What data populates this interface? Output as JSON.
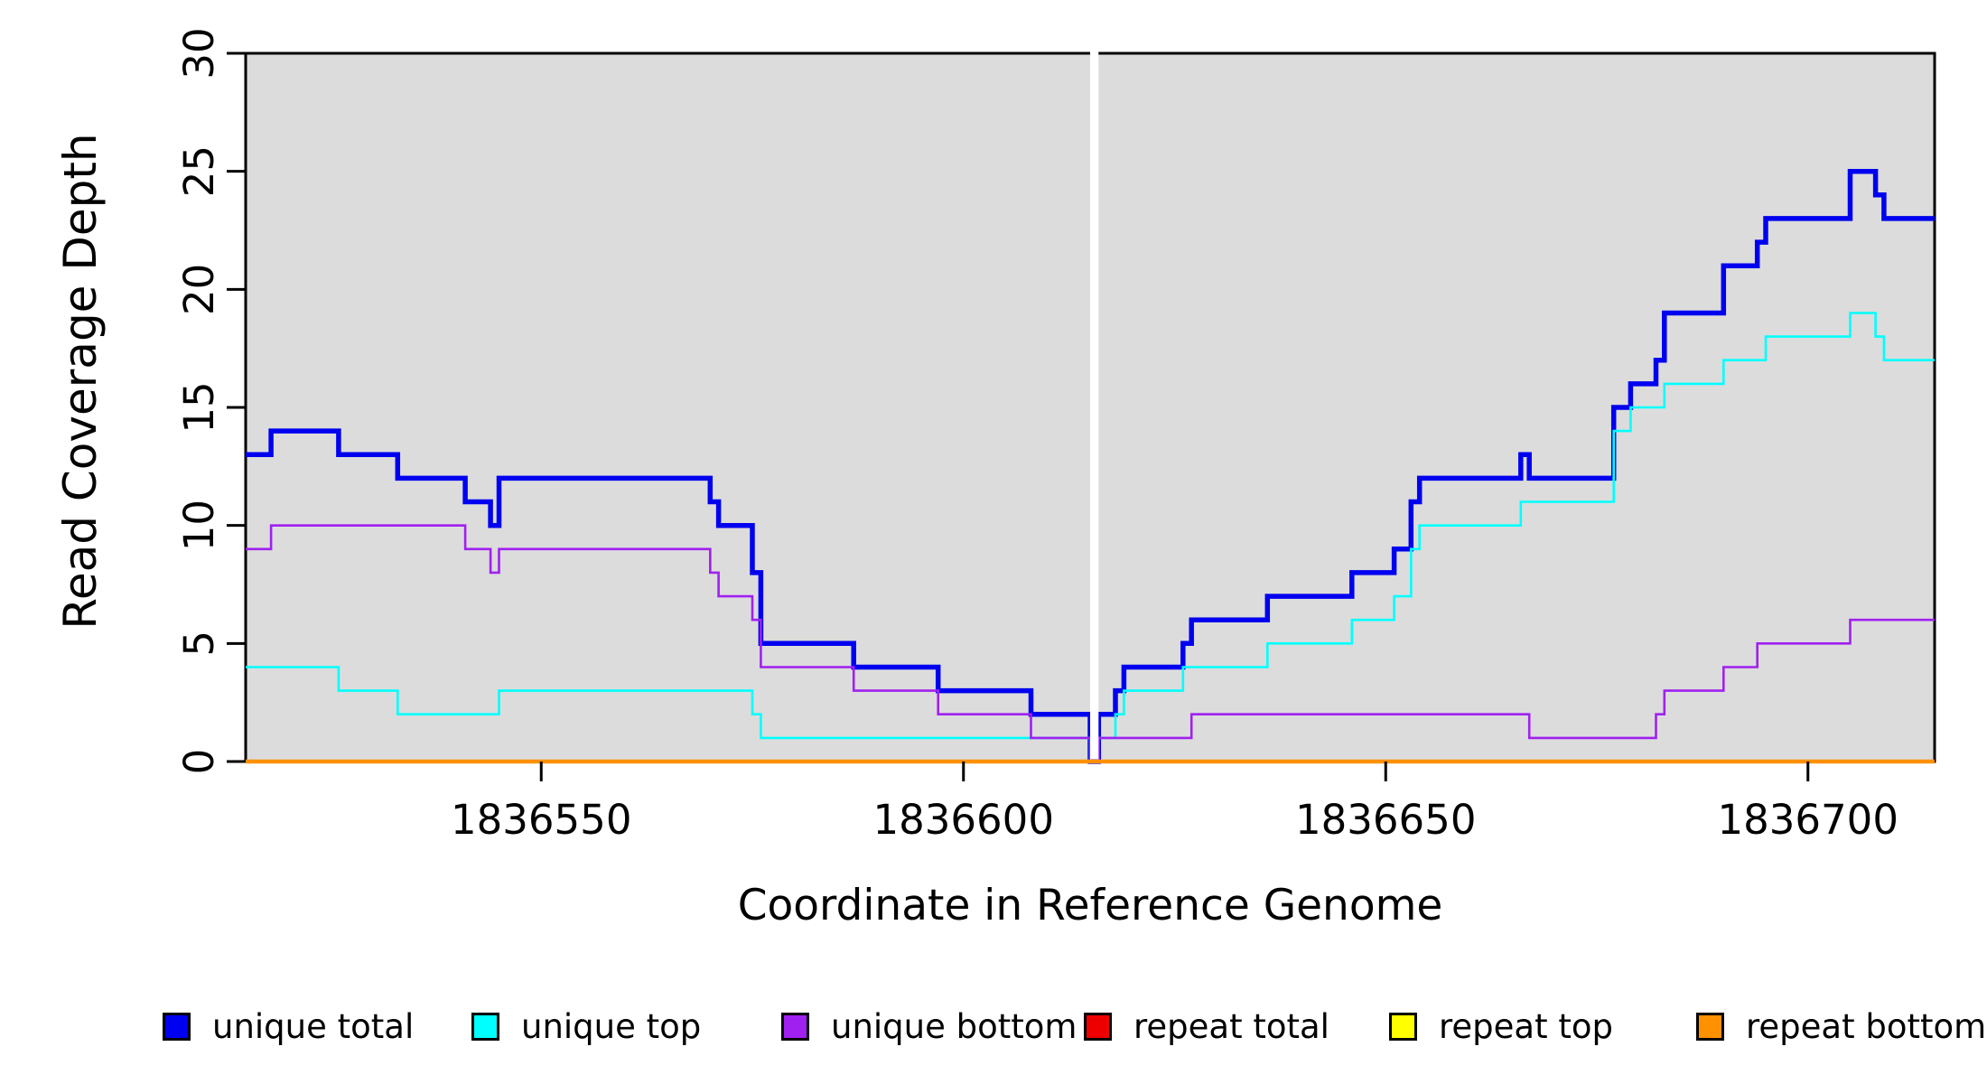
{
  "chart_data": {
    "type": "step-line",
    "title": "",
    "xlabel": "Coordinate in Reference Genome",
    "ylabel": "Read Coverage Depth",
    "xlim": [
      1836515,
      1836715
    ],
    "ylim": [
      0,
      30
    ],
    "x_ticks": [
      "1836550",
      "1836600",
      "1836650",
      "1836700"
    ],
    "x_tick_values": [
      1836550,
      1836600,
      1836650,
      1836700
    ],
    "y_ticks": [
      "0",
      "5",
      "10",
      "15",
      "20",
      "25",
      "30"
    ],
    "y_tick_values": [
      0,
      5,
      10,
      15,
      20,
      25,
      30
    ],
    "plot_background": "#dcdcdc",
    "frame_color": "#000000",
    "grid": false,
    "legend_position": "bottom",
    "gap_line_x": 1836615,
    "gap_line_color": "#ffffff",
    "series": [
      {
        "name": "unique total",
        "color": "#0000f0",
        "line_width": 5.5,
        "steps": [
          [
            1836515,
            13
          ],
          [
            1836518,
            14
          ],
          [
            1836526,
            13
          ],
          [
            1836533,
            12
          ],
          [
            1836541,
            11
          ],
          [
            1836544,
            10
          ],
          [
            1836545,
            12
          ],
          [
            1836570,
            11
          ],
          [
            1836571,
            10
          ],
          [
            1836575,
            8
          ],
          [
            1836576,
            5
          ],
          [
            1836587,
            4
          ],
          [
            1836597,
            3
          ],
          [
            1836608,
            2
          ],
          [
            1836615,
            0
          ],
          [
            1836616,
            2
          ],
          [
            1836618,
            3
          ],
          [
            1836619,
            4
          ],
          [
            1836626,
            5
          ],
          [
            1836627,
            6
          ],
          [
            1836636,
            7
          ],
          [
            1836646,
            8
          ],
          [
            1836651,
            9
          ],
          [
            1836653,
            11
          ],
          [
            1836654,
            12
          ],
          [
            1836666,
            13
          ],
          [
            1836667,
            12
          ],
          [
            1836677,
            15
          ],
          [
            1836679,
            16
          ],
          [
            1836682,
            17
          ],
          [
            1836683,
            19
          ],
          [
            1836690,
            21
          ],
          [
            1836694,
            22
          ],
          [
            1836695,
            23
          ],
          [
            1836705,
            25
          ],
          [
            1836708,
            24
          ],
          [
            1836709,
            23
          ]
        ]
      },
      {
        "name": "unique top",
        "color": "#00ffff",
        "line_width": 2.6,
        "steps": [
          [
            1836515,
            4
          ],
          [
            1836526,
            3
          ],
          [
            1836533,
            2
          ],
          [
            1836545,
            3
          ],
          [
            1836575,
            2
          ],
          [
            1836576,
            1
          ],
          [
            1836615,
            0
          ],
          [
            1836616,
            1
          ],
          [
            1836618,
            2
          ],
          [
            1836619,
            3
          ],
          [
            1836626,
            4
          ],
          [
            1836636,
            5
          ],
          [
            1836646,
            6
          ],
          [
            1836651,
            7
          ],
          [
            1836653,
            9
          ],
          [
            1836654,
            10
          ],
          [
            1836666,
            11
          ],
          [
            1836677,
            14
          ],
          [
            1836679,
            15
          ],
          [
            1836683,
            16
          ],
          [
            1836690,
            17
          ],
          [
            1836695,
            18
          ],
          [
            1836705,
            19
          ],
          [
            1836708,
            18
          ],
          [
            1836709,
            17
          ]
        ]
      },
      {
        "name": "unique bottom",
        "color": "#a020f0",
        "line_width": 2.6,
        "steps": [
          [
            1836515,
            9
          ],
          [
            1836518,
            10
          ],
          [
            1836541,
            9
          ],
          [
            1836544,
            8
          ],
          [
            1836545,
            9
          ],
          [
            1836570,
            8
          ],
          [
            1836571,
            7
          ],
          [
            1836575,
            6
          ],
          [
            1836576,
            4
          ],
          [
            1836587,
            3
          ],
          [
            1836597,
            2
          ],
          [
            1836608,
            1
          ],
          [
            1836615,
            0
          ],
          [
            1836616,
            1
          ],
          [
            1836627,
            2
          ],
          [
            1836667,
            1
          ],
          [
            1836682,
            2
          ],
          [
            1836683,
            3
          ],
          [
            1836690,
            4
          ],
          [
            1836694,
            5
          ],
          [
            1836705,
            6
          ]
        ]
      },
      {
        "name": "repeat total",
        "color": "#ee0000",
        "line_width": 2.6,
        "steps": [
          [
            1836515,
            0
          ]
        ]
      },
      {
        "name": "repeat top",
        "color": "#ffff00",
        "line_width": 3,
        "steps": [
          [
            1836515,
            0
          ]
        ]
      },
      {
        "name": "repeat bottom",
        "color": "#ff9100",
        "line_width": 4.5,
        "steps": [
          [
            1836515,
            0
          ]
        ]
      }
    ]
  },
  "legend": {
    "items": [
      {
        "label": "unique total",
        "color": "#0000f0"
      },
      {
        "label": "unique top",
        "color": "#00ffff"
      },
      {
        "label": "unique bottom",
        "color": "#a020f0"
      },
      {
        "label": "repeat total",
        "color": "#ee0000"
      },
      {
        "label": "repeat top",
        "color": "#ffff00"
      },
      {
        "label": "repeat bottom",
        "color": "#ff9100"
      }
    ]
  }
}
